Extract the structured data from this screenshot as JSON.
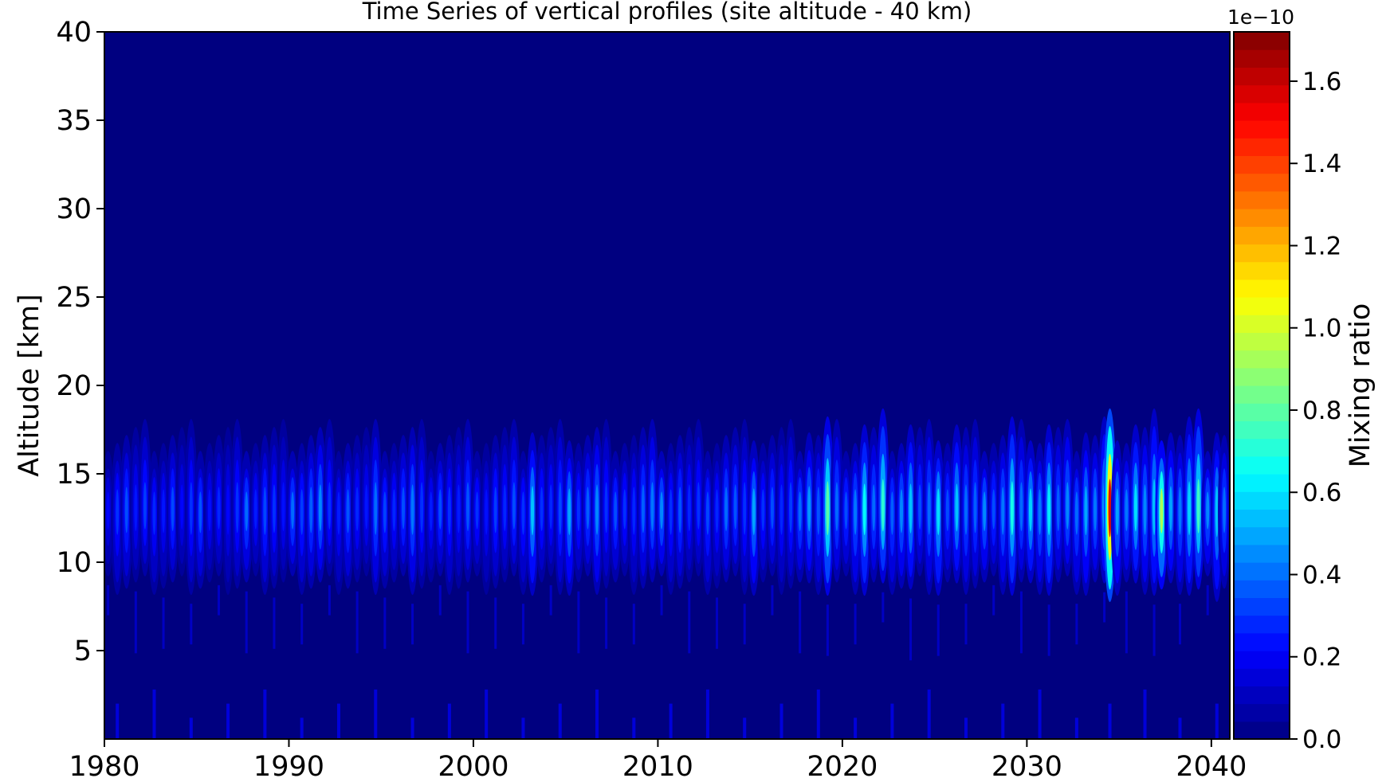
{
  "chart_data": {
    "type": "heatmap",
    "title": "Time Series of vertical profiles (site altitude - 40 km)",
    "xlabel": "",
    "ylabel": "Altitude [km]",
    "xlim": [
      1980,
      2041
    ],
    "ylim": [
      0,
      40
    ],
    "x_ticks": [
      1980,
      1990,
      2000,
      2010,
      2020,
      2030,
      2040
    ],
    "y_ticks": [
      5,
      10,
      15,
      20,
      25,
      30,
      35,
      40
    ],
    "grid": false,
    "colorbar": {
      "label": "Mixing ratio",
      "offset_text": "1e−10",
      "scale": 1e-10,
      "range": [
        0.0,
        1.72
      ],
      "ticks": [
        "0.0",
        "0.2",
        "0.4",
        "0.6",
        "0.8",
        "1.0",
        "1.2",
        "1.4",
        "1.6"
      ],
      "colormap": "jet",
      "levels": 40
    },
    "background_value": 0.0,
    "layer": {
      "center_km": 13,
      "approx_range_km": [
        8,
        18
      ]
    },
    "series": [
      {
        "values": [
          [
            1980.2,
            0.22
          ],
          [
            1980.7,
            0.3
          ],
          [
            1981.2,
            0.35
          ],
          [
            1981.7,
            0.25
          ],
          [
            1982.2,
            0.32
          ],
          [
            1982.7,
            0.28
          ],
          [
            1983.2,
            0.25
          ],
          [
            1983.7,
            0.34
          ],
          [
            1984.2,
            0.22
          ],
          [
            1984.7,
            0.3
          ],
          [
            1985.2,
            0.36
          ],
          [
            1985.7,
            0.24
          ],
          [
            1986.2,
            0.28
          ],
          [
            1986.7,
            0.22
          ],
          [
            1987.2,
            0.3
          ],
          [
            1987.7,
            0.4
          ],
          [
            1988.2,
            0.26
          ],
          [
            1988.7,
            0.34
          ],
          [
            1989.2,
            0.3
          ],
          [
            1989.7,
            0.24
          ],
          [
            1990.2,
            0.4
          ],
          [
            1990.7,
            0.32
          ],
          [
            1991.2,
            0.38
          ],
          [
            1991.7,
            0.45
          ],
          [
            1992.2,
            0.3
          ],
          [
            1992.7,
            0.26
          ],
          [
            1993.2,
            0.36
          ],
          [
            1993.7,
            0.28
          ],
          [
            1994.2,
            0.25
          ],
          [
            1994.7,
            0.4
          ],
          [
            1995.2,
            0.33
          ],
          [
            1995.7,
            0.28
          ],
          [
            1996.2,
            0.35
          ],
          [
            1996.7,
            0.42
          ],
          [
            1997.2,
            0.3
          ],
          [
            1997.7,
            0.26
          ],
          [
            1998.2,
            0.35
          ],
          [
            1998.7,
            0.3
          ],
          [
            1999.2,
            0.26
          ],
          [
            1999.7,
            0.36
          ],
          [
            2000.2,
            0.3
          ],
          [
            2000.7,
            0.24
          ],
          [
            2001.2,
            0.32
          ],
          [
            2001.7,
            0.28
          ],
          [
            2002.2,
            0.35
          ],
          [
            2002.7,
            0.3
          ],
          [
            2003.2,
            0.55
          ],
          [
            2003.7,
            0.3
          ],
          [
            2004.2,
            0.28
          ],
          [
            2004.7,
            0.34
          ],
          [
            2005.2,
            0.5
          ],
          [
            2005.7,
            0.3
          ],
          [
            2006.2,
            0.38
          ],
          [
            2006.7,
            0.45
          ],
          [
            2007.2,
            0.3
          ],
          [
            2007.7,
            0.35
          ],
          [
            2008.2,
            0.3
          ],
          [
            2008.7,
            0.28
          ],
          [
            2009.2,
            0.38
          ],
          [
            2009.7,
            0.42
          ],
          [
            2010.2,
            0.45
          ],
          [
            2010.7,
            0.3
          ],
          [
            2011.2,
            0.36
          ],
          [
            2011.7,
            0.28
          ],
          [
            2012.2,
            0.3
          ],
          [
            2012.7,
            0.34
          ],
          [
            2013.2,
            0.28
          ],
          [
            2013.7,
            0.4
          ],
          [
            2014.2,
            0.36
          ],
          [
            2014.7,
            0.3
          ],
          [
            2015.2,
            0.5
          ],
          [
            2015.7,
            0.3
          ],
          [
            2016.2,
            0.35
          ],
          [
            2016.7,
            0.28
          ],
          [
            2017.2,
            0.32
          ],
          [
            2017.7,
            0.4
          ],
          [
            2018.2,
            0.48
          ],
          [
            2018.7,
            0.36
          ],
          [
            2019.2,
            0.8
          ],
          [
            2019.7,
            0.4
          ],
          [
            2020.2,
            0.35
          ],
          [
            2020.7,
            0.42
          ],
          [
            2021.2,
            0.65
          ],
          [
            2021.7,
            0.4
          ],
          [
            2022.2,
            0.72
          ],
          [
            2022.7,
            0.38
          ],
          [
            2023.2,
            0.45
          ],
          [
            2023.7,
            0.55
          ],
          [
            2024.2,
            0.35
          ],
          [
            2024.7,
            0.4
          ],
          [
            2025.2,
            0.6
          ],
          [
            2025.7,
            0.35
          ],
          [
            2026.2,
            0.55
          ],
          [
            2026.7,
            0.4
          ],
          [
            2027.2,
            0.38
          ],
          [
            2027.7,
            0.45
          ],
          [
            2028.2,
            0.35
          ],
          [
            2028.7,
            0.42
          ],
          [
            2029.2,
            0.68
          ],
          [
            2029.7,
            0.4
          ],
          [
            2030.2,
            0.58
          ],
          [
            2030.7,
            0.42
          ],
          [
            2031.2,
            0.62
          ],
          [
            2031.7,
            0.38
          ],
          [
            2032.2,
            0.45
          ],
          [
            2032.7,
            0.4
          ],
          [
            2033.2,
            0.5
          ],
          [
            2033.7,
            0.42
          ],
          [
            2034.2,
            0.55
          ],
          [
            2034.5,
            1.55
          ],
          [
            2034.9,
            0.5
          ],
          [
            2035.4,
            0.42
          ],
          [
            2035.9,
            0.6
          ],
          [
            2036.4,
            0.45
          ],
          [
            2036.9,
            0.55
          ],
          [
            2037.3,
            0.95
          ],
          [
            2037.8,
            0.5
          ],
          [
            2038.3,
            0.42
          ],
          [
            2038.8,
            0.58
          ],
          [
            2039.3,
            0.75
          ],
          [
            2039.8,
            0.45
          ],
          [
            2040.3,
            0.55
          ],
          [
            2040.7,
            0.4
          ]
        ]
      }
    ]
  }
}
